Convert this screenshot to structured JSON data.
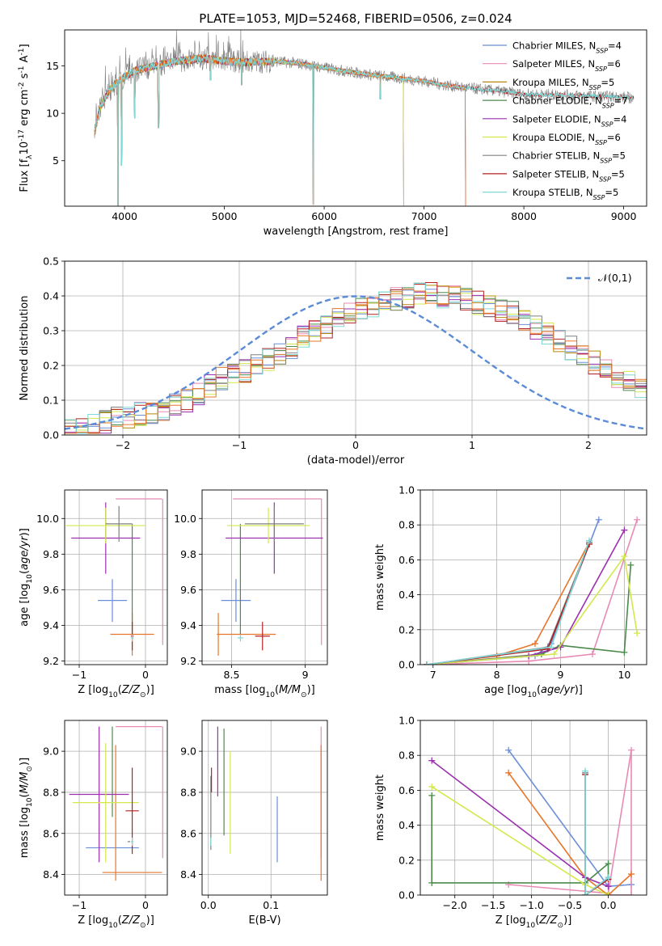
{
  "figure": {
    "title": "PLATE=1053, MJD=52468, FIBERID=0506, z=0.024"
  },
  "colors": {
    "Chabrier MILES": "#6a8fd8",
    "Salpeter MILES": "#e88ab4",
    "Kroupa MILES": "#b8860b",
    "Chabrier ELODIE": "#4c8a4c",
    "Salpeter ELODIE": "#9b30b0",
    "Kroupa ELODIE": "#d4e84c",
    "Chabrier STELIB": "#808080",
    "Salpeter STELIB": "#b22222",
    "Kroupa STELIB": "#7fd8d8",
    "orange": "#e8762a",
    "normal": "#5b8bd6"
  },
  "chart_data": [
    {
      "id": "spectrum",
      "type": "line",
      "title": "PLATE=1053, MJD=52468, FIBERID=0506, z=0.024",
      "xlabel": "wavelength [Angstrom, rest frame]",
      "ylabel": "Flux [f$_\\lambda$10$^{-17}$ erg cm$^{-2}$ s$^{-1}$ A$^{-1}$]",
      "xlim": [
        3400,
        9230
      ],
      "ylim": [
        0.2,
        18.8
      ],
      "xticks": [
        4000,
        5000,
        6000,
        7000,
        8000,
        9000
      ],
      "yticks": [
        5,
        10,
        15
      ],
      "grid": false,
      "legend_position": "top-right",
      "legend": [
        {
          "name": "Chabrier MILES",
          "nssp": "4"
        },
        {
          "name": "Salpeter MILES",
          "nssp": "6"
        },
        {
          "name": "Kroupa MILES",
          "nssp": "5"
        },
        {
          "name": "Chabrier ELODIE",
          "nssp": "7"
        },
        {
          "name": "Salpeter ELODIE",
          "nssp": "4"
        },
        {
          "name": "Kroupa ELODIE",
          "nssp": "6"
        },
        {
          "name": "Chabrier STELIB",
          "nssp": "5"
        },
        {
          "name": "Salpeter STELIB",
          "nssp": "5"
        },
        {
          "name": "Kroupa STELIB",
          "nssp": "5"
        }
      ],
      "continuum": [
        [
          3700,
          8
        ],
        [
          3750,
          10.5
        ],
        [
          3850,
          12.5
        ],
        [
          3950,
          13.5
        ],
        [
          4100,
          14.5
        ],
        [
          4300,
          15
        ],
        [
          4500,
          15.5
        ],
        [
          4800,
          15.8
        ],
        [
          5000,
          15.5
        ],
        [
          5200,
          15.4
        ],
        [
          5500,
          15.5
        ],
        [
          5800,
          15.2
        ],
        [
          6000,
          14.8
        ],
        [
          6300,
          14.3
        ],
        [
          6600,
          13.9
        ],
        [
          7000,
          13.4
        ],
        [
          7200,
          13
        ],
        [
          7400,
          12.7
        ],
        [
          7700,
          12.4
        ],
        [
          8000,
          12
        ],
        [
          8500,
          11.9
        ],
        [
          9000,
          11.7
        ],
        [
          9100,
          11.6
        ]
      ],
      "absorption_lines": [
        {
          "x": 3934,
          "depth_to": 0.3
        },
        {
          "x": 3969,
          "depth_to": 4.5
        },
        {
          "x": 4102,
          "depth_to": 9.5
        },
        {
          "x": 4340,
          "depth_to": 8.5
        },
        {
          "x": 4861,
          "depth_to": 13.5
        },
        {
          "x": 5175,
          "depth_to": 13
        },
        {
          "x": 5890,
          "depth_to": 0.4
        },
        {
          "x": 6563,
          "depth_to": 11.5
        },
        {
          "x": 6800,
          "depth_to": 0.3
        },
        {
          "x": 7420,
          "depth_to": 0.3
        }
      ],
      "data_range_by_library": {
        "MILES": [
          3700,
          7420
        ],
        "ELODIE": [
          3700,
          6800
        ],
        "STELIB": [
          3700,
          9100
        ]
      }
    },
    {
      "id": "residuals",
      "type": "line",
      "xlabel": "(data-model)/error",
      "ylabel": "Normed distribution",
      "xlim": [
        -2.5,
        2.5
      ],
      "ylim": [
        0,
        0.5
      ],
      "xticks": [
        -2,
        -1,
        0,
        1,
        2
      ],
      "yticks": [
        0.0,
        0.1,
        0.2,
        0.3,
        0.4,
        0.5
      ],
      "grid": true,
      "legend_position": "top-right",
      "legend": [
        {
          "name": "$\\mathcal{N}(0,1)$"
        }
      ],
      "bin_width": 0.1,
      "histogram_envelope": [
        0.02,
        0.025,
        0.03,
        0.04,
        0.05,
        0.055,
        0.06,
        0.065,
        0.075,
        0.085,
        0.1,
        0.12,
        0.14,
        0.16,
        0.17,
        0.185,
        0.2,
        0.22,
        0.235,
        0.25,
        0.28,
        0.3,
        0.31,
        0.33,
        0.35,
        0.36,
        0.37,
        0.38,
        0.39,
        0.4,
        0.41,
        0.41,
        0.4,
        0.4,
        0.39,
        0.38,
        0.37,
        0.36,
        0.35,
        0.33,
        0.31,
        0.29,
        0.27,
        0.25,
        0.23,
        0.21,
        0.19,
        0.17,
        0.15,
        0.14,
        0.13,
        0.11,
        0.1,
        0.09,
        0.08,
        0.07,
        0.06,
        0.05,
        0.04,
        0.035
      ]
    },
    {
      "id": "age-vs-Z",
      "type": "scatter",
      "xlabel": "Z [log$_{10}$($Z/Z_\\odot$)]",
      "ylabel": "age  [log$_{10}$($age/yr$)]",
      "xlim": [
        -1.22,
        0.33
      ],
      "ylim": [
        9.18,
        10.16
      ],
      "xticks": [
        -1,
        0
      ],
      "yticks": [
        9.2,
        9.4,
        9.6,
        9.8,
        10.0
      ],
      "grid": true,
      "errorbars": [
        {
          "series": "Chabrier MILES",
          "x": -0.5,
          "y": 9.54,
          "xerr": 0.22,
          "yerr": 0.12
        },
        {
          "series": "Salpeter MILES",
          "x": -0.1,
          "y": 10.11,
          "xerr": 0.35,
          "yerr": 0.0
        },
        {
          "series": "Salpeter MILES",
          "x": 0.26,
          "y": 9.7,
          "xerr": 0.0,
          "yerr": 0.41
        },
        {
          "series": "orange",
          "x": -0.2,
          "y": 9.35,
          "xerr": 0.33,
          "yerr": 0.12
        },
        {
          "series": "Chabrier ELODIE",
          "x": -0.2,
          "y": 9.66,
          "xerr": 0.0,
          "yerr": 0.31
        },
        {
          "series": "Salpeter ELODIE",
          "x": -0.6,
          "y": 9.89,
          "xerr": 0.52,
          "yerr": 0.2
        },
        {
          "series": "Kroupa ELODIE",
          "x": -0.6,
          "y": 9.96,
          "xerr": 0.6,
          "yerr": 0.1
        },
        {
          "series": "Chabrier STELIB",
          "x": -0.4,
          "y": 9.97,
          "xerr": 0.2,
          "yerr": 0.1
        },
        {
          "series": "Salpeter STELIB",
          "x": -0.2,
          "y": 9.34,
          "xerr": 0.02,
          "yerr": 0.08
        },
        {
          "series": "Kroupa STELIB",
          "x": -0.2,
          "y": 9.33,
          "xerr": 0.02,
          "yerr": 0.02
        }
      ]
    },
    {
      "id": "age-vs-mass",
      "type": "scatter",
      "xlabel": "mass [log$_{10}$($M/M_\\odot$)]",
      "ylabel": "",
      "xlim": [
        8.3,
        9.15
      ],
      "ylim": [
        9.18,
        10.16
      ],
      "xticks": [
        8.5,
        9.0
      ],
      "yticks": [
        9.2,
        9.4,
        9.6,
        9.8,
        10.0
      ],
      "grid": true,
      "errorbars": [
        {
          "series": "Chabrier MILES",
          "x": 8.53,
          "y": 9.54,
          "xerr": 0.1,
          "yerr": 0.12
        },
        {
          "series": "Salpeter MILES",
          "x": 8.81,
          "y": 10.11,
          "xerr": 0.3,
          "yerr": 0.0
        },
        {
          "series": "Salpeter MILES",
          "x": 9.11,
          "y": 9.7,
          "xerr": 0.0,
          "yerr": 0.41
        },
        {
          "series": "orange",
          "x": 8.41,
          "y": 9.35,
          "xerr": 0.0,
          "yerr": 0.12
        },
        {
          "series": "orange",
          "x": 8.6,
          "y": 9.35,
          "xerr": 0.2,
          "yerr": 0.0
        },
        {
          "series": "Chabrier ELODIE",
          "x": 8.56,
          "y": 9.66,
          "xerr": 0.0,
          "yerr": 0.31
        },
        {
          "series": "Salpeter ELODIE",
          "x": 8.79,
          "y": 9.89,
          "xerr": 0.33,
          "yerr": 0.2
        },
        {
          "series": "Kroupa ELODIE",
          "x": 8.75,
          "y": 9.96,
          "xerr": 0.28,
          "yerr": 0.1
        },
        {
          "series": "Chabrier STELIB",
          "x": 8.79,
          "y": 9.97,
          "xerr": 0.2,
          "yerr": 0.1
        },
        {
          "series": "Salpeter STELIB",
          "x": 8.71,
          "y": 9.34,
          "xerr": 0.05,
          "yerr": 0.08
        },
        {
          "series": "Kroupa STELIB",
          "x": 8.56,
          "y": 9.33,
          "xerr": 0.02,
          "yerr": 0.02
        }
      ]
    },
    {
      "id": "weight-vs-age",
      "type": "line",
      "xlabel": "age  [log$_{10}$($age/yr$)]",
      "ylabel": "mass weight",
      "xlim": [
        6.8,
        10.35
      ],
      "ylim": [
        0.0,
        1.0
      ],
      "xticks": [
        7,
        8,
        9,
        10
      ],
      "yticks": [
        0.0,
        0.2,
        0.4,
        0.6,
        0.8,
        1.0
      ],
      "grid": true,
      "series": [
        {
          "name": "Chabrier MILES",
          "x": [
            6.9,
            8.6,
            8.85,
            9.6
          ],
          "y": [
            0.0,
            0.05,
            0.12,
            0.83
          ]
        },
        {
          "name": "Salpeter MILES",
          "x": [
            6.9,
            8.5,
            9.5,
            10.2
          ],
          "y": [
            0.0,
            0.02,
            0.06,
            0.83
          ]
        },
        {
          "name": "orange",
          "x": [
            6.9,
            8.0,
            8.6,
            9.45
          ],
          "y": [
            0.0,
            0.05,
            0.12,
            0.7
          ]
        },
        {
          "name": "Chabrier ELODIE",
          "x": [
            6.9,
            8.7,
            9.0,
            10.0,
            10.1
          ],
          "y": [
            0.0,
            0.06,
            0.11,
            0.07,
            0.57
          ]
        },
        {
          "name": "Salpeter ELODIE",
          "x": [
            6.9,
            8.5,
            9.0,
            10.0
          ],
          "y": [
            0.0,
            0.05,
            0.1,
            0.77
          ]
        },
        {
          "name": "Kroupa ELODIE",
          "x": [
            6.9,
            8.9,
            10.0,
            10.2
          ],
          "y": [
            0.0,
            0.06,
            0.62,
            0.18
          ]
        },
        {
          "name": "Chabrier STELIB",
          "x": [
            6.9,
            8.8,
            9.45
          ],
          "y": [
            0.0,
            0.1,
            0.7
          ]
        },
        {
          "name": "Salpeter STELIB",
          "x": [
            6.9,
            8.8,
            9.45
          ],
          "y": [
            0.0,
            0.09,
            0.69
          ]
        },
        {
          "name": "Kroupa STELIB",
          "x": [
            6.9,
            8.85,
            9.45
          ],
          "y": [
            0.0,
            0.1,
            0.71
          ]
        }
      ]
    },
    {
      "id": "mass-vs-Z",
      "type": "scatter",
      "xlabel": "Z [log$_{10}$($Z/Z_\\odot$)]",
      "ylabel": "mass [log$_{10}$($M/M_\\odot$)]",
      "xlim": [
        -1.22,
        0.33
      ],
      "ylim": [
        8.3,
        9.15
      ],
      "xticks": [
        -1,
        0
      ],
      "yticks": [
        8.4,
        8.6,
        8.8,
        9.0
      ],
      "grid": true,
      "errorbars": [
        {
          "series": "Chabrier MILES",
          "x": -0.5,
          "y": 8.53,
          "xerr": 0.4,
          "yerr": 0.0
        },
        {
          "series": "Salpeter MILES",
          "x": -0.1,
          "y": 9.12,
          "xerr": 0.35,
          "yerr": 0.0
        },
        {
          "series": "Salpeter MILES",
          "x": 0.26,
          "y": 8.8,
          "xerr": 0.0,
          "yerr": 0.32
        },
        {
          "series": "orange",
          "x": -0.2,
          "y": 8.41,
          "xerr": 0.45,
          "yerr": 0.0
        },
        {
          "series": "orange",
          "x": -0.45,
          "y": 8.7,
          "xerr": 0.0,
          "yerr": 0.33
        },
        {
          "series": "Chabrier ELODIE",
          "x": -0.5,
          "y": 8.9,
          "xerr": 0.0,
          "yerr": 0.22
        },
        {
          "series": "Salpeter ELODIE",
          "x": -0.7,
          "y": 8.79,
          "xerr": 0.45,
          "yerr": 0.33
        },
        {
          "series": "Kroupa ELODIE",
          "x": -0.6,
          "y": 8.75,
          "xerr": 0.5,
          "yerr": 0.29
        },
        {
          "series": "Chabrier STELIB",
          "x": -0.25,
          "y": 8.56,
          "xerr": 0.02,
          "yerr": 0.0
        },
        {
          "series": "Salpeter STELIB",
          "x": -0.2,
          "y": 8.71,
          "xerr": 0.1,
          "yerr": 0.21
        },
        {
          "series": "Kroupa STELIB",
          "x": -0.2,
          "y": 8.56,
          "xerr": 0.02,
          "yerr": 0.02
        }
      ]
    },
    {
      "id": "mass-vs-EBV",
      "type": "scatter",
      "xlabel": "E(B-V)",
      "ylabel": "",
      "xlim": [
        -0.01,
        0.19
      ],
      "ylim": [
        8.3,
        9.15
      ],
      "xticks": [
        0.0,
        0.1
      ],
      "yticks": [
        8.4,
        8.6,
        8.8,
        9.0
      ],
      "grid": true,
      "errorbars": [
        {
          "series": "Chabrier MILES",
          "x": 0.11,
          "y": 8.62,
          "xerr": 0.0,
          "yerr": 0.16
        },
        {
          "series": "Salpeter MILES",
          "x": 0.18,
          "y": 8.8,
          "xerr": 0.0,
          "yerr": 0.32
        },
        {
          "series": "orange",
          "x": 0.18,
          "y": 8.7,
          "xerr": 0.0,
          "yerr": 0.33
        },
        {
          "series": "Chabrier ELODIE",
          "x": 0.025,
          "y": 8.85,
          "xerr": 0.0,
          "yerr": 0.26
        },
        {
          "series": "Salpeter ELODIE",
          "x": 0.015,
          "y": 8.95,
          "xerr": 0.0,
          "yerr": 0.17
        },
        {
          "series": "Kroupa ELODIE",
          "x": 0.035,
          "y": 8.75,
          "xerr": 0.0,
          "yerr": 0.25
        },
        {
          "series": "Chabrier STELIB",
          "x": 0.004,
          "y": 8.7,
          "xerr": 0.0,
          "yerr": 0.18
        },
        {
          "series": "Salpeter STELIB",
          "x": 0.005,
          "y": 8.86,
          "xerr": 0.0,
          "yerr": 0.06
        },
        {
          "series": "Kroupa STELIB",
          "x": 0.004,
          "y": 8.56,
          "xerr": 0.0,
          "yerr": 0.02
        }
      ]
    },
    {
      "id": "weight-vs-Z",
      "type": "line",
      "xlabel": "Z [log$_{10}$($Z/Z_\\odot$)]",
      "ylabel": "mass weight",
      "xlim": [
        -2.45,
        0.5
      ],
      "ylim": [
        0.0,
        1.0
      ],
      "xticks": [
        -2.0,
        -1.5,
        -1.0,
        -0.5,
        0.0
      ],
      "yticks": [
        0.0,
        0.2,
        0.4,
        0.6,
        0.8,
        1.0
      ],
      "grid": true,
      "series": [
        {
          "name": "Chabrier MILES",
          "x": [
            -1.3,
            0.0,
            0.3
          ],
          "y": [
            0.83,
            0.05,
            0.06
          ]
        },
        {
          "name": "Salpeter MILES",
          "x": [
            -1.3,
            0.0,
            0.3,
            0.3,
            0.0
          ],
          "y": [
            0.06,
            0.01,
            0.83,
            0.0,
            0.0
          ]
        },
        {
          "name": "orange",
          "x": [
            -1.3,
            -0.3,
            0.0,
            0.3
          ],
          "y": [
            0.7,
            0.1,
            0.0,
            0.12
          ]
        },
        {
          "name": "Chabrier ELODIE",
          "x": [
            -2.3,
            -2.3,
            -0.3,
            0.0,
            0.0
          ],
          "y": [
            0.57,
            0.07,
            0.07,
            0.18,
            0.1
          ]
        },
        {
          "name": "Salpeter ELODIE",
          "x": [
            -2.3,
            -0.3,
            0.0
          ],
          "y": [
            0.77,
            0.1,
            0.05
          ]
        },
        {
          "name": "Kroupa ELODIE",
          "x": [
            -2.3,
            -0.3,
            0.0
          ],
          "y": [
            0.62,
            0.06,
            0.0
          ]
        },
        {
          "name": "Chabrier STELIB",
          "x": [
            -0.3,
            -0.3,
            0.0
          ],
          "y": [
            0.7,
            0.0,
            0.1
          ]
        },
        {
          "name": "Salpeter STELIB",
          "x": [
            -0.3,
            -0.3,
            0.0
          ],
          "y": [
            0.69,
            0.0,
            0.09
          ]
        },
        {
          "name": "Kroupa STELIB",
          "x": [
            -0.3,
            -0.3,
            0.0
          ],
          "y": [
            0.71,
            0.0,
            0.1
          ]
        }
      ]
    }
  ]
}
